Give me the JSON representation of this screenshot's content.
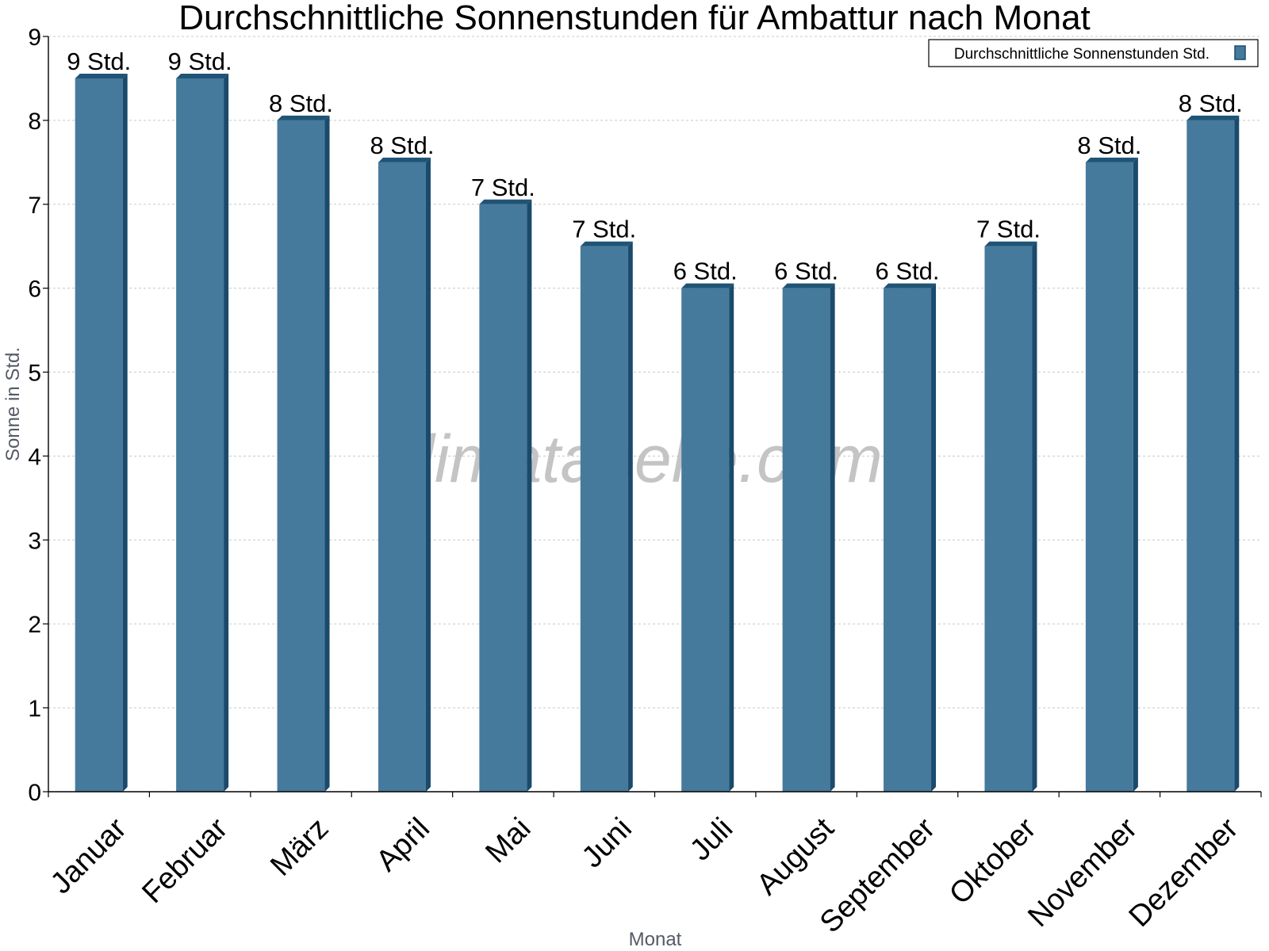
{
  "watermark": "klimatabelle.com",
  "chart_data": {
    "type": "bar",
    "title": "Durchschnittliche Sonnenstunden für Ambattur nach Monat",
    "xlabel": "Monat",
    "ylabel": "Sonne in Std.",
    "ylim": [
      0,
      9
    ],
    "yticks": [
      "0",
      "1",
      "2",
      "3",
      "4",
      "5",
      "6",
      "7",
      "8",
      "9"
    ],
    "grid": true,
    "legend_position": "top-right",
    "categories": [
      "Januar",
      "Februar",
      "März",
      "April",
      "Mai",
      "Juni",
      "Juli",
      "August",
      "September",
      "Oktober",
      "November",
      "Dezember"
    ],
    "series": [
      {
        "name": "Durchschnittliche Sonnenstunden Std.",
        "color": "#467a9c",
        "values": [
          8.5,
          8.5,
          8.0,
          7.5,
          7.0,
          6.5,
          6.0,
          6.0,
          6.0,
          6.5,
          7.5,
          8.0
        ],
        "labels": [
          "9 Std.",
          "9 Std.",
          "8 Std.",
          "8 Std.",
          "7 Std.",
          "7 Std.",
          "6 Std.",
          "6 Std.",
          "6 Std.",
          "7 Std.",
          "8 Std.",
          "8 Std."
        ]
      }
    ]
  }
}
